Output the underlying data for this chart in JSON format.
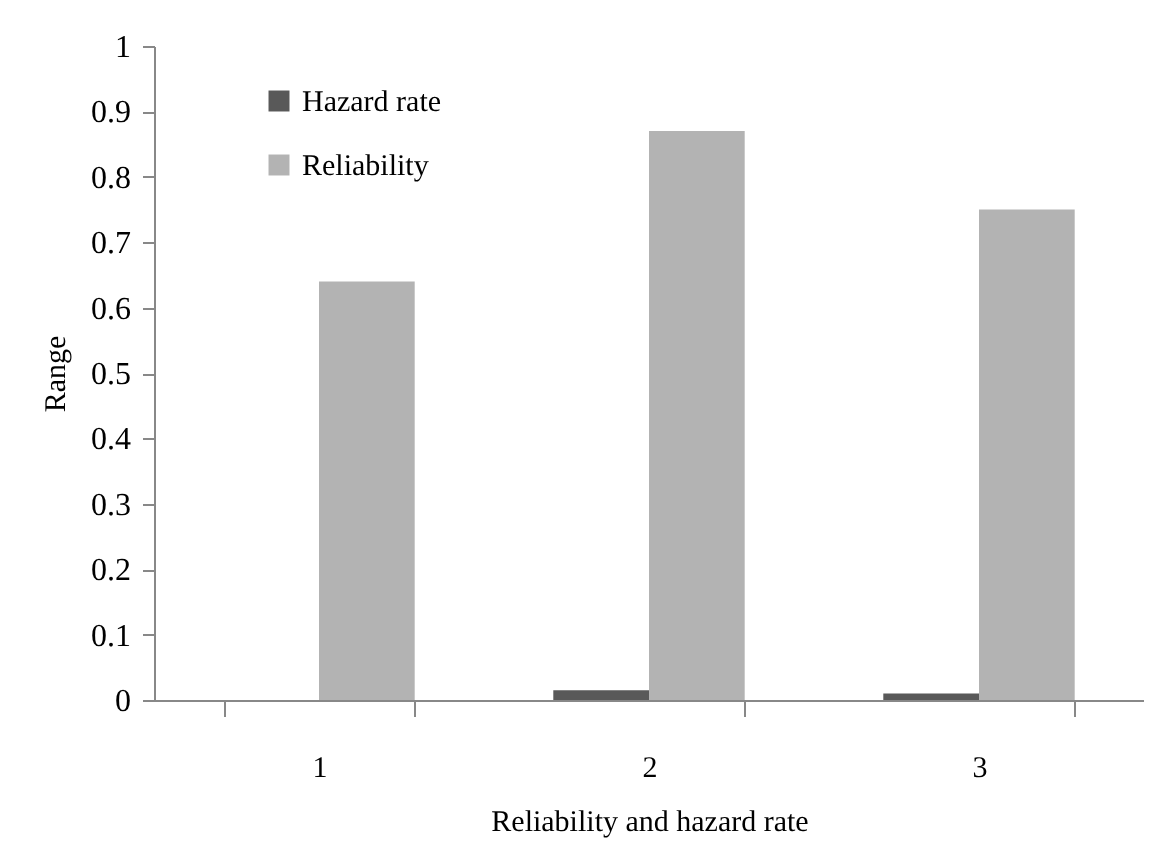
{
  "chart_data": {
    "type": "bar",
    "xlabel": "Reliability and hazard rate",
    "ylabel": "Range",
    "categories": [
      "1",
      "2",
      "3"
    ],
    "series": [
      {
        "name": "Hazard rate",
        "color": "#595959",
        "values": [
          0,
          0.015,
          0.01
        ]
      },
      {
        "name": "Reliability",
        "color": "#b3b3b3",
        "values": [
          0.64,
          0.87,
          0.75
        ]
      }
    ],
    "ylim": [
      0,
      1
    ],
    "yticks": [
      0,
      0.1,
      0.2,
      0.3,
      0.4,
      0.5,
      0.6,
      0.7,
      0.8,
      0.9,
      1
    ],
    "grid": false,
    "legend": "top left"
  }
}
